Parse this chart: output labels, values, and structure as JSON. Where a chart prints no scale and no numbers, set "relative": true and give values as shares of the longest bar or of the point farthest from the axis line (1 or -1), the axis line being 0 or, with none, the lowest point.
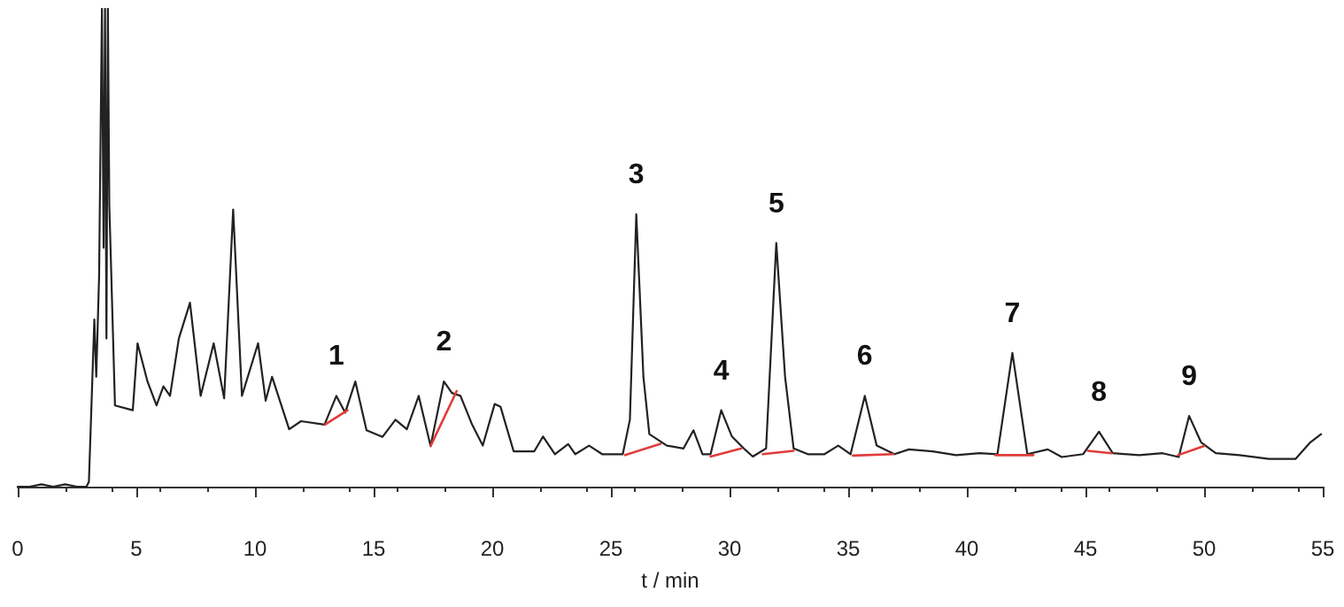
{
  "chart_data": {
    "type": "line",
    "relative": true,
    "xlabel": "t / min",
    "xlim": [
      0,
      55
    ],
    "xticks": [
      0,
      5,
      10,
      15,
      20,
      25,
      30,
      35,
      40,
      45,
      50,
      55
    ],
    "marker": "none",
    "line_style": "solid",
    "series": [
      {
        "color": "#222222",
        "x": [
          0,
          0.5,
          1,
          1.5,
          2,
          2.5,
          2.9,
          3.0,
          3.23,
          3.31,
          3.43,
          3.55,
          3.62,
          3.68,
          3.74,
          3.8,
          3.86,
          4.1,
          4.85,
          5.05,
          5.47,
          5.85,
          6.14,
          6.42,
          6.79,
          7.26,
          7.71,
          8.26,
          8.7,
          9.08,
          9.45,
          10.13,
          10.45,
          10.72,
          11.44,
          11.94,
          12.93,
          13.43,
          13.8,
          14.23,
          14.7,
          15.37,
          15.92,
          16.4,
          16.9,
          17.4,
          17.96,
          18.3,
          18.66,
          19.15,
          19.6,
          20.1,
          20.35,
          20.9,
          21.77,
          22.14,
          22.64,
          23.2,
          23.5,
          24.08,
          24.63,
          25.5,
          25.8,
          26.07,
          26.37,
          26.62,
          27.36,
          28.06,
          28.48,
          28.86,
          29.2,
          29.65,
          30.1,
          30.6,
          30.98,
          31.54,
          31.97,
          32.34,
          32.7,
          33.3,
          34.0,
          34.58,
          35.1,
          35.7,
          36.2,
          36.95,
          37.56,
          38.56,
          39.55,
          40.54,
          41.29,
          41.92,
          42.55,
          43.41,
          44.0,
          44.9,
          45.57,
          46.15,
          47.26,
          48.25,
          48.93,
          49.37,
          49.87,
          50.49,
          51.49,
          52.73,
          53.85,
          54.48,
          54.93
        ],
        "values": [
          0,
          0,
          0.005,
          0,
          0.005,
          0,
          0,
          0.01,
          0.35,
          0.23,
          0.44,
          1,
          0.5,
          1,
          0.31,
          1,
          0.59,
          0.17,
          0.16,
          0.3,
          0.22,
          0.17,
          0.21,
          0.19,
          0.31,
          0.385,
          0.19,
          0.3,
          0.185,
          0.58,
          0.19,
          0.3,
          0.18,
          0.23,
          0.12,
          0.137,
          0.13,
          0.19,
          0.155,
          0.22,
          0.118,
          0.104,
          0.14,
          0.12,
          0.19,
          0.085,
          0.22,
          0.196,
          0.19,
          0.13,
          0.086,
          0.173,
          0.167,
          0.074,
          0.074,
          0.105,
          0.068,
          0.089,
          0.068,
          0.086,
          0.068,
          0.068,
          0.14,
          0.57,
          0.23,
          0.11,
          0.086,
          0.08,
          0.118,
          0.068,
          0.068,
          0.16,
          0.105,
          0.08,
          0.063,
          0.08,
          0.51,
          0.23,
          0.08,
          0.068,
          0.068,
          0.086,
          0.068,
          0.19,
          0.086,
          0.068,
          0.078,
          0.074,
          0.066,
          0.07,
          0.068,
          0.28,
          0.068,
          0.078,
          0.062,
          0.068,
          0.115,
          0.07,
          0.066,
          0.07,
          0.062,
          0.148,
          0.093,
          0.07,
          0.066,
          0.058,
          0.058,
          0.093,
          0.11
        ]
      },
      {
        "color": "#e03c3c",
        "x": [
          12.95,
          13.9
        ],
        "values": [
          0.13,
          0.16
        ]
      },
      {
        "color": "#e03c3c",
        "x": [
          17.4,
          18.5
        ],
        "values": [
          0.085,
          0.2
        ]
      },
      {
        "color": "#e03c3c",
        "x": [
          25.6,
          27.1
        ],
        "values": [
          0.066,
          0.09
        ]
      },
      {
        "color": "#e03c3c",
        "x": [
          29.2,
          30.5
        ],
        "values": [
          0.063,
          0.08
        ]
      },
      {
        "color": "#e03c3c",
        "x": [
          31.4,
          32.7
        ],
        "values": [
          0.068,
          0.075
        ]
      },
      {
        "color": "#e03c3c",
        "x": [
          35.2,
          36.9
        ],
        "values": [
          0.065,
          0.068
        ]
      },
      {
        "color": "#e03c3c",
        "x": [
          41.2,
          42.8
        ],
        "values": [
          0.066,
          0.066
        ]
      },
      {
        "color": "#e03c3c",
        "x": [
          45.1,
          46.1
        ],
        "values": [
          0.075,
          0.07
        ]
      },
      {
        "color": "#e03c3c",
        "x": [
          48.9,
          50.0
        ],
        "values": [
          0.066,
          0.085
        ]
      }
    ],
    "annotations": [
      {
        "text": "1",
        "x": 13.43,
        "y": 0.19
      },
      {
        "text": "2",
        "x": 17.96,
        "y": 0.22
      },
      {
        "text": "3",
        "x": 26.07,
        "y": 0.57
      },
      {
        "text": "4",
        "x": 29.65,
        "y": 0.16
      },
      {
        "text": "5",
        "x": 31.97,
        "y": 0.51
      },
      {
        "text": "6",
        "x": 35.7,
        "y": 0.19
      },
      {
        "text": "7",
        "x": 41.92,
        "y": 0.28
      },
      {
        "text": "8",
        "x": 45.57,
        "y": 0.115
      },
      {
        "text": "9",
        "x": 49.37,
        "y": 0.148
      }
    ]
  }
}
